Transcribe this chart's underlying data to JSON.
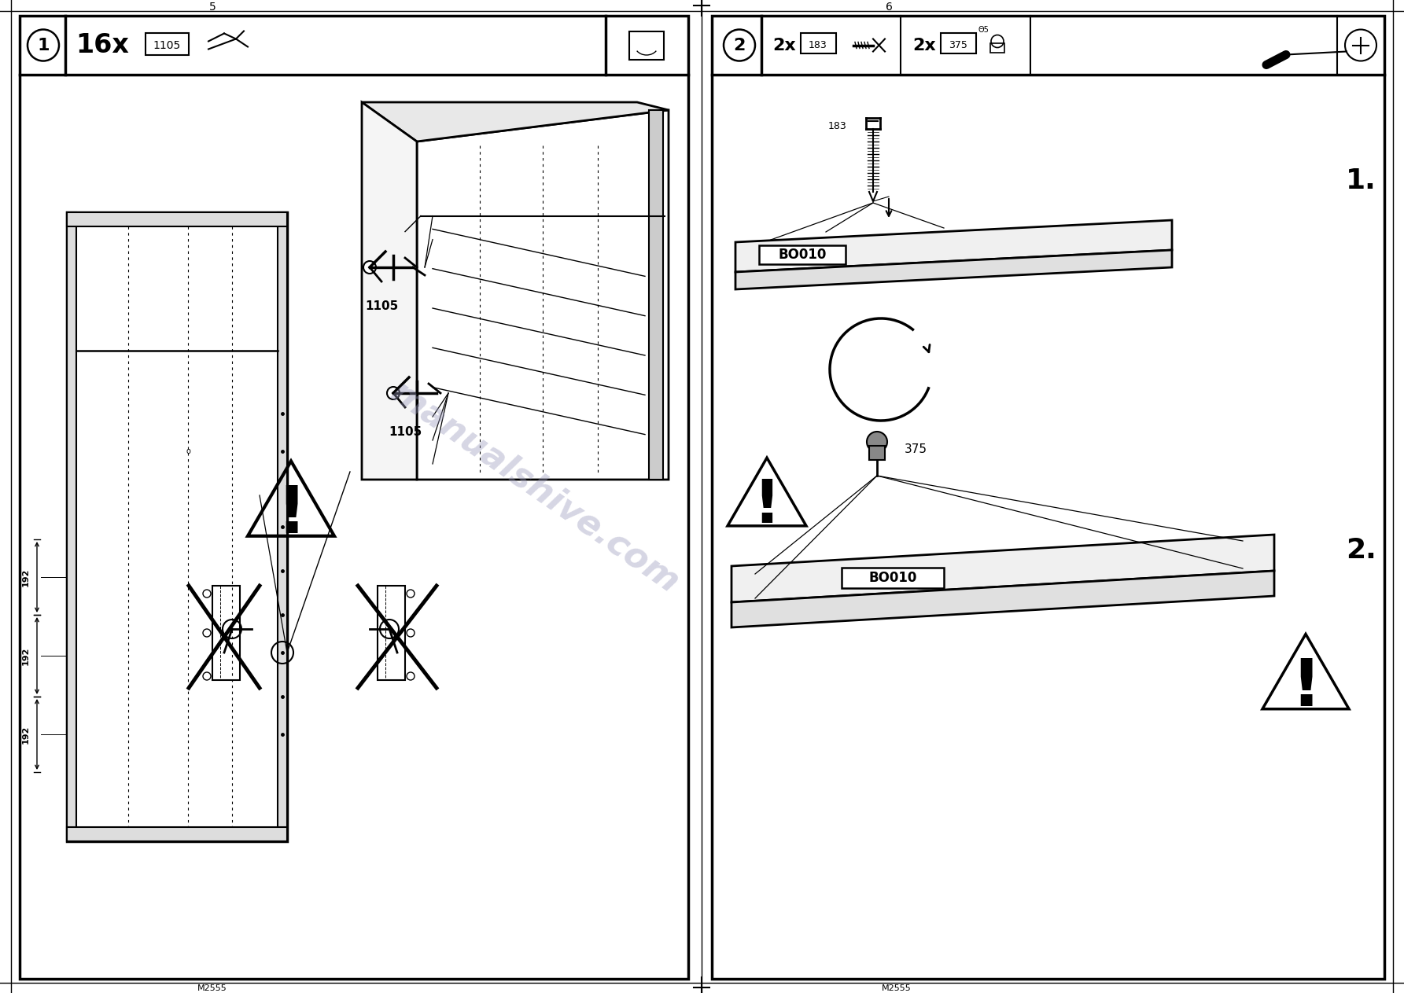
{
  "bg_color": "#ffffff",
  "line_color": "#000000",
  "page_num_left": "5",
  "page_num_right": "6",
  "model_text": "M2555",
  "watermark_text": "manualshive.com",
  "watermark_color": "#9999bb",
  "watermark_alpha": 0.4,
  "left_panel": {
    "step_num": "1",
    "qty_text": "16x",
    "part_code": "1105",
    "measurements": [
      "192",
      "192",
      "192"
    ]
  },
  "right_panel": {
    "step_num": "2",
    "qty1": "2x",
    "part1": "183",
    "qty2": "2x",
    "part2": "375",
    "diameter": "Θ5",
    "label_bo010": "BO010",
    "step1_label": "1.",
    "step2_label": "2."
  }
}
